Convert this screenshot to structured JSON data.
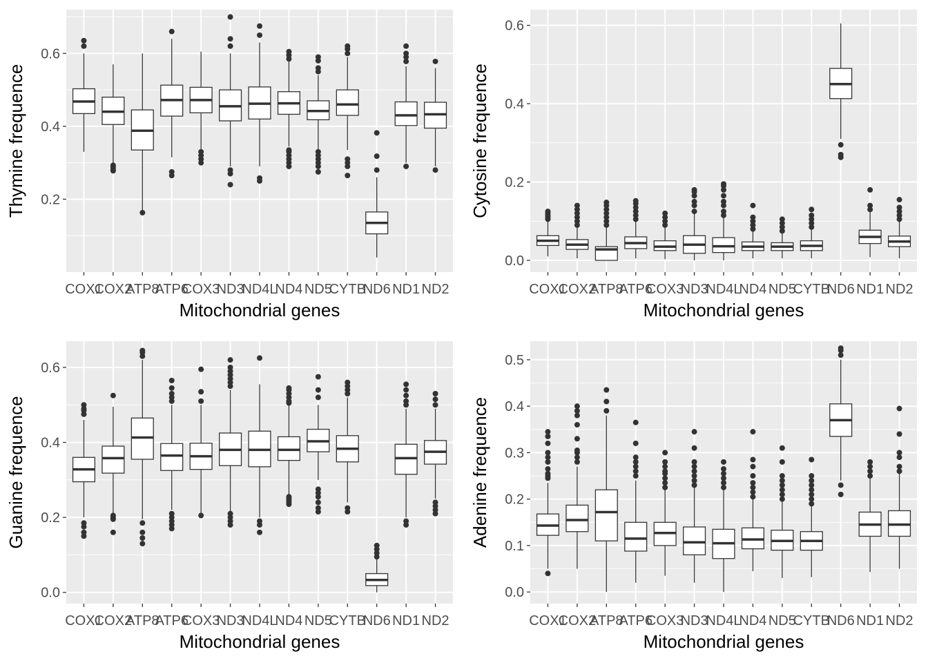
{
  "chart_data": [
    {
      "type": "box",
      "xlabel": "Mitochondrial genes",
      "ylabel": "Thymine frequence",
      "categories": [
        "COX1",
        "COX2",
        "ATP8",
        "ATP6",
        "COX3",
        "ND3",
        "ND4L",
        "ND4",
        "ND5",
        "CYTB",
        "ND6",
        "ND1",
        "ND2"
      ],
      "ylim": [
        0.0,
        0.72
      ],
      "yticks": [
        0.2,
        0.4,
        0.6
      ],
      "grid": true,
      "boxes": [
        {
          "category": "COX1",
          "whisker_low": 0.33,
          "q1": 0.435,
          "median": 0.468,
          "q3": 0.503,
          "whisker_high": 0.6,
          "outliers": [
            0.62,
            0.635
          ]
        },
        {
          "category": "COX2",
          "whisker_low": 0.3,
          "q1": 0.405,
          "median": 0.44,
          "q3": 0.48,
          "whisker_high": 0.57,
          "outliers": [
            0.278,
            0.282,
            0.288,
            0.293
          ]
        },
        {
          "category": "ATP8",
          "whisker_low": 0.165,
          "q1": 0.335,
          "median": 0.388,
          "q3": 0.445,
          "whisker_high": 0.6,
          "outliers": [
            0.163
          ]
        },
        {
          "category": "ATP6",
          "whisker_low": 0.315,
          "q1": 0.428,
          "median": 0.472,
          "q3": 0.513,
          "whisker_high": 0.64,
          "outliers": [
            0.265,
            0.275,
            0.66
          ]
        },
        {
          "category": "COX3",
          "whisker_low": 0.335,
          "q1": 0.437,
          "median": 0.472,
          "q3": 0.507,
          "whisker_high": 0.605,
          "outliers": [
            0.3,
            0.31,
            0.32,
            0.33
          ]
        },
        {
          "category": "ND3",
          "whisker_low": 0.29,
          "q1": 0.415,
          "median": 0.455,
          "q3": 0.5,
          "whisker_high": 0.6,
          "outliers": [
            0.24,
            0.27,
            0.28,
            0.62,
            0.64,
            0.7
          ]
        },
        {
          "category": "ND4L",
          "whisker_low": 0.29,
          "q1": 0.42,
          "median": 0.462,
          "q3": 0.508,
          "whisker_high": 0.63,
          "outliers": [
            0.25,
            0.258,
            0.65,
            0.675
          ]
        },
        {
          "category": "ND4",
          "whisker_low": 0.345,
          "q1": 0.433,
          "median": 0.463,
          "q3": 0.495,
          "whisker_high": 0.58,
          "outliers": [
            0.29,
            0.3,
            0.31,
            0.32,
            0.33,
            0.335,
            0.585,
            0.595,
            0.605
          ]
        },
        {
          "category": "ND5",
          "whisker_low": 0.33,
          "q1": 0.418,
          "median": 0.442,
          "q3": 0.47,
          "whisker_high": 0.54,
          "outliers": [
            0.275,
            0.29,
            0.3,
            0.31,
            0.32,
            0.33,
            0.55,
            0.56,
            0.58,
            0.59
          ]
        },
        {
          "category": "CYTB",
          "whisker_low": 0.335,
          "q1": 0.43,
          "median": 0.46,
          "q3": 0.5,
          "whisker_high": 0.59,
          "outliers": [
            0.265,
            0.29,
            0.3,
            0.31,
            0.6,
            0.612,
            0.62
          ]
        },
        {
          "category": "ND6",
          "whisker_low": 0.04,
          "q1": 0.105,
          "median": 0.135,
          "q3": 0.165,
          "whisker_high": 0.26,
          "outliers": [
            0.28,
            0.318,
            0.382
          ]
        },
        {
          "category": "ND1",
          "whisker_low": 0.3,
          "q1": 0.402,
          "median": 0.43,
          "q3": 0.467,
          "whisker_high": 0.565,
          "outliers": [
            0.29,
            0.578,
            0.59,
            0.6,
            0.62
          ]
        },
        {
          "category": "ND2",
          "whisker_low": 0.29,
          "q1": 0.395,
          "median": 0.433,
          "q3": 0.466,
          "whisker_high": 0.56,
          "outliers": [
            0.28,
            0.578
          ]
        }
      ]
    },
    {
      "type": "box",
      "xlabel": "Mitochondrial genes",
      "ylabel": "Cytosine frequence",
      "categories": [
        "COX1",
        "COX2",
        "ATP8",
        "ATP6",
        "COX3",
        "ND3",
        "ND4L",
        "ND4",
        "ND5",
        "CYTB",
        "ND6",
        "ND1",
        "ND2"
      ],
      "ylim": [
        -0.03,
        0.64
      ],
      "yticks": [
        0.0,
        0.2,
        0.4,
        0.6
      ],
      "grid": true,
      "boxes": [
        {
          "category": "COX1",
          "whisker_low": 0.01,
          "q1": 0.038,
          "median": 0.05,
          "q3": 0.063,
          "whisker_high": 0.1,
          "outliers": [
            0.105,
            0.11,
            0.115,
            0.12,
            0.125
          ]
        },
        {
          "category": "COX2",
          "whisker_low": 0.005,
          "q1": 0.028,
          "median": 0.04,
          "q3": 0.053,
          "whisker_high": 0.085,
          "outliers": [
            0.09,
            0.1,
            0.11,
            0.12,
            0.13,
            0.14
          ]
        },
        {
          "category": "ATP8",
          "whisker_low": 0.0,
          "q1": 0.0,
          "median": 0.028,
          "q3": 0.035,
          "whisker_high": 0.085,
          "outliers": [
            0.09,
            0.1,
            0.11,
            0.12,
            0.13,
            0.14,
            0.148
          ]
        },
        {
          "category": "ATP6",
          "whisker_low": 0.005,
          "q1": 0.03,
          "median": 0.044,
          "q3": 0.06,
          "whisker_high": 0.1,
          "outliers": [
            0.105,
            0.115,
            0.125,
            0.135,
            0.145,
            0.152
          ]
        },
        {
          "category": "COX3",
          "whisker_low": 0.003,
          "q1": 0.025,
          "median": 0.035,
          "q3": 0.05,
          "whisker_high": 0.085,
          "outliers": [
            0.09,
            0.1,
            0.11,
            0.12
          ]
        },
        {
          "category": "ND3",
          "whisker_low": 0.0,
          "q1": 0.018,
          "median": 0.04,
          "q3": 0.063,
          "whisker_high": 0.12,
          "outliers": [
            0.125,
            0.14,
            0.15,
            0.165,
            0.175,
            0.18
          ]
        },
        {
          "category": "ND4L",
          "whisker_low": 0.0,
          "q1": 0.02,
          "median": 0.036,
          "q3": 0.058,
          "whisker_high": 0.11,
          "outliers": [
            0.115,
            0.125,
            0.14,
            0.15,
            0.165,
            0.18,
            0.19,
            0.195
          ]
        },
        {
          "category": "ND4",
          "whisker_low": 0.005,
          "q1": 0.025,
          "median": 0.035,
          "q3": 0.047,
          "whisker_high": 0.075,
          "outliers": [
            0.08,
            0.09,
            0.1,
            0.11,
            0.14
          ]
        },
        {
          "category": "ND5",
          "whisker_low": 0.005,
          "q1": 0.025,
          "median": 0.035,
          "q3": 0.045,
          "whisker_high": 0.07,
          "outliers": [
            0.075,
            0.085,
            0.095,
            0.105
          ]
        },
        {
          "category": "CYTB",
          "whisker_low": 0.005,
          "q1": 0.025,
          "median": 0.037,
          "q3": 0.05,
          "whisker_high": 0.08,
          "outliers": [
            0.085,
            0.095,
            0.105,
            0.115,
            0.13
          ]
        },
        {
          "category": "ND6",
          "whisker_low": 0.31,
          "q1": 0.413,
          "median": 0.45,
          "q3": 0.49,
          "whisker_high": 0.605,
          "outliers": [
            0.263,
            0.27,
            0.295
          ]
        },
        {
          "category": "ND1",
          "whisker_low": 0.008,
          "q1": 0.043,
          "median": 0.06,
          "q3": 0.077,
          "whisker_high": 0.125,
          "outliers": [
            0.13,
            0.14,
            0.18
          ]
        },
        {
          "category": "ND2",
          "whisker_low": 0.005,
          "q1": 0.035,
          "median": 0.048,
          "q3": 0.062,
          "whisker_high": 0.1,
          "outliers": [
            0.105,
            0.115,
            0.125,
            0.135,
            0.155
          ]
        }
      ]
    },
    {
      "type": "box",
      "xlabel": "Mitochondrial genes",
      "ylabel": "Guanine frequence",
      "categories": [
        "COX1",
        "COX2",
        "ATP8",
        "ATP6",
        "COX3",
        "ND3",
        "ND4L",
        "ND4",
        "ND5",
        "CYTB",
        "ND6",
        "ND1",
        "ND2"
      ],
      "ylim": [
        -0.03,
        0.67
      ],
      "yticks": [
        0.0,
        0.2,
        0.4,
        0.6
      ],
      "grid": true,
      "boxes": [
        {
          "category": "COX1",
          "whisker_low": 0.2,
          "q1": 0.295,
          "median": 0.328,
          "q3": 0.36,
          "whisker_high": 0.46,
          "outliers": [
            0.15,
            0.16,
            0.175,
            0.185,
            0.475,
            0.485,
            0.49,
            0.5
          ]
        },
        {
          "category": "COX2",
          "whisker_low": 0.205,
          "q1": 0.318,
          "median": 0.358,
          "q3": 0.39,
          "whisker_high": 0.495,
          "outliers": [
            0.16,
            0.195,
            0.2,
            0.205,
            0.525
          ]
        },
        {
          "category": "ATP8",
          "whisker_low": 0.195,
          "q1": 0.355,
          "median": 0.413,
          "q3": 0.465,
          "whisker_high": 0.62,
          "outliers": [
            0.13,
            0.145,
            0.16,
            0.185,
            0.63,
            0.64,
            0.645
          ]
        },
        {
          "category": "ATP6",
          "whisker_low": 0.22,
          "q1": 0.325,
          "median": 0.365,
          "q3": 0.397,
          "whisker_high": 0.5,
          "outliers": [
            0.17,
            0.18,
            0.19,
            0.2,
            0.21,
            0.51,
            0.52,
            0.53,
            0.545,
            0.565
          ]
        },
        {
          "category": "COX3",
          "whisker_low": 0.21,
          "q1": 0.328,
          "median": 0.363,
          "q3": 0.398,
          "whisker_high": 0.5,
          "outliers": [
            0.205,
            0.51,
            0.535,
            0.595
          ]
        },
        {
          "category": "ND3",
          "whisker_low": 0.215,
          "q1": 0.338,
          "median": 0.38,
          "q3": 0.425,
          "whisker_high": 0.54,
          "outliers": [
            0.18,
            0.19,
            0.2,
            0.21,
            0.55,
            0.56,
            0.57,
            0.58,
            0.59,
            0.6,
            0.62
          ]
        },
        {
          "category": "ND4L",
          "whisker_low": 0.2,
          "q1": 0.335,
          "median": 0.38,
          "q3": 0.43,
          "whisker_high": 0.555,
          "outliers": [
            0.16,
            0.18,
            0.19,
            0.625
          ]
        },
        {
          "category": "ND4",
          "whisker_low": 0.26,
          "q1": 0.352,
          "median": 0.38,
          "q3": 0.415,
          "whisker_high": 0.5,
          "outliers": [
            0.235,
            0.24,
            0.245,
            0.25,
            0.255,
            0.505,
            0.51,
            0.52,
            0.53,
            0.54,
            0.545
          ]
        },
        {
          "category": "ND5",
          "whisker_low": 0.3,
          "q1": 0.375,
          "median": 0.403,
          "q3": 0.435,
          "whisker_high": 0.5,
          "outliers": [
            0.215,
            0.225,
            0.24,
            0.255,
            0.265,
            0.275,
            0.52,
            0.54,
            0.575
          ]
        },
        {
          "category": "CYTB",
          "whisker_low": 0.24,
          "q1": 0.348,
          "median": 0.383,
          "q3": 0.418,
          "whisker_high": 0.52,
          "outliers": [
            0.215,
            0.225,
            0.53,
            0.54,
            0.55,
            0.56
          ]
        },
        {
          "category": "ND6",
          "whisker_low": 0.0,
          "q1": 0.018,
          "median": 0.033,
          "q3": 0.05,
          "whisker_high": 0.09,
          "outliers": [
            0.095,
            0.105,
            0.115,
            0.125
          ]
        },
        {
          "category": "ND1",
          "whisker_low": 0.2,
          "q1": 0.315,
          "median": 0.358,
          "q3": 0.395,
          "whisker_high": 0.49,
          "outliers": [
            0.18,
            0.19,
            0.5,
            0.51,
            0.525,
            0.54,
            0.555
          ]
        },
        {
          "category": "ND2",
          "whisker_low": 0.25,
          "q1": 0.342,
          "median": 0.375,
          "q3": 0.405,
          "whisker_high": 0.49,
          "outliers": [
            0.21,
            0.22,
            0.23,
            0.24,
            0.5,
            0.515,
            0.53
          ]
        }
      ]
    },
    {
      "type": "box",
      "xlabel": "Mitochondrial genes",
      "ylabel": "Adenine frequence",
      "categories": [
        "COX1",
        "COX2",
        "ATP8",
        "ATP6",
        "COX3",
        "ND3",
        "ND4L",
        "ND4",
        "ND5",
        "CYTB",
        "ND6",
        "ND1",
        "ND2"
      ],
      "ylim": [
        -0.025,
        0.54
      ],
      "yticks": [
        0.0,
        0.1,
        0.2,
        0.3,
        0.4,
        0.5
      ],
      "grid": true,
      "boxes": [
        {
          "category": "COX1",
          "whisker_low": 0.05,
          "q1": 0.122,
          "median": 0.143,
          "q3": 0.168,
          "whisker_high": 0.235,
          "outliers": [
            0.04,
            0.245,
            0.25,
            0.255,
            0.265,
            0.28,
            0.29,
            0.3,
            0.32,
            0.335,
            0.345
          ]
        },
        {
          "category": "COX2",
          "whisker_low": 0.05,
          "q1": 0.13,
          "median": 0.155,
          "q3": 0.187,
          "whisker_high": 0.27,
          "outliers": [
            0.28,
            0.29,
            0.3,
            0.305,
            0.33,
            0.36,
            0.38,
            0.39,
            0.4
          ]
        },
        {
          "category": "ATP8",
          "whisker_low": 0.0,
          "q1": 0.11,
          "median": 0.172,
          "q3": 0.22,
          "whisker_high": 0.38,
          "outliers": [
            0.39,
            0.41,
            0.435
          ]
        },
        {
          "category": "ATP6",
          "whisker_low": 0.02,
          "q1": 0.088,
          "median": 0.115,
          "q3": 0.15,
          "whisker_high": 0.24,
          "outliers": [
            0.25,
            0.26,
            0.27,
            0.28,
            0.29,
            0.32,
            0.365
          ]
        },
        {
          "category": "COX3",
          "whisker_low": 0.035,
          "q1": 0.1,
          "median": 0.127,
          "q3": 0.15,
          "whisker_high": 0.22,
          "outliers": [
            0.225,
            0.235,
            0.245,
            0.255,
            0.26,
            0.27,
            0.28,
            0.3
          ]
        },
        {
          "category": "ND3",
          "whisker_low": 0.02,
          "q1": 0.08,
          "median": 0.107,
          "q3": 0.14,
          "whisker_high": 0.225,
          "outliers": [
            0.23,
            0.24,
            0.25,
            0.26,
            0.27,
            0.28,
            0.31,
            0.345
          ]
        },
        {
          "category": "ND4L",
          "whisker_low": 0.0,
          "q1": 0.072,
          "median": 0.105,
          "q3": 0.135,
          "whisker_high": 0.22,
          "outliers": [
            0.225,
            0.235,
            0.245,
            0.255,
            0.265,
            0.28
          ]
        },
        {
          "category": "ND4",
          "whisker_low": 0.045,
          "q1": 0.093,
          "median": 0.113,
          "q3": 0.138,
          "whisker_high": 0.2,
          "outliers": [
            0.205,
            0.215,
            0.225,
            0.235,
            0.25,
            0.27,
            0.285,
            0.345
          ]
        },
        {
          "category": "ND5",
          "whisker_low": 0.03,
          "q1": 0.09,
          "median": 0.11,
          "q3": 0.133,
          "whisker_high": 0.195,
          "outliers": [
            0.2,
            0.21,
            0.22,
            0.23,
            0.24,
            0.25,
            0.28,
            0.31
          ]
        },
        {
          "category": "CYTB",
          "whisker_low": 0.032,
          "q1": 0.09,
          "median": 0.11,
          "q3": 0.13,
          "whisker_high": 0.185,
          "outliers": [
            0.19,
            0.2,
            0.21,
            0.22,
            0.23,
            0.24,
            0.25,
            0.285
          ]
        },
        {
          "category": "ND6",
          "whisker_low": 0.24,
          "q1": 0.335,
          "median": 0.37,
          "q3": 0.405,
          "whisker_high": 0.5,
          "outliers": [
            0.21,
            0.23,
            0.51,
            0.52,
            0.525
          ]
        },
        {
          "category": "ND1",
          "whisker_low": 0.043,
          "q1": 0.12,
          "median": 0.145,
          "q3": 0.172,
          "whisker_high": 0.245,
          "outliers": [
            0.25,
            0.26,
            0.27,
            0.28
          ]
        },
        {
          "category": "ND2",
          "whisker_low": 0.05,
          "q1": 0.12,
          "median": 0.145,
          "q3": 0.175,
          "whisker_high": 0.255,
          "outliers": [
            0.26,
            0.27,
            0.29,
            0.3,
            0.34,
            0.395
          ]
        }
      ]
    }
  ]
}
